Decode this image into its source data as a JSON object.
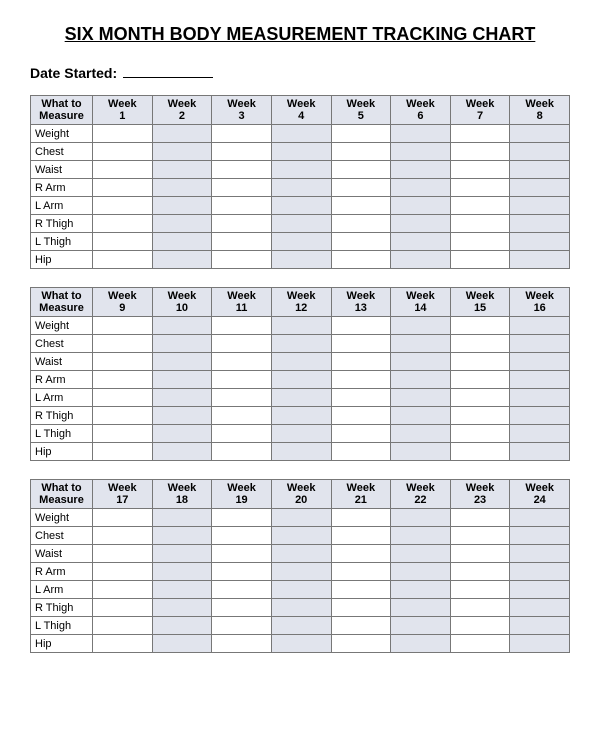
{
  "page": {
    "title": "SIX MONTH BODY MEASUREMENT TRACKING CHART",
    "date_started_label": "Date Started:",
    "title_fontsize": 18,
    "label_fontsize": 14,
    "body_fontsize": 11,
    "background_color": "#ffffff",
    "text_color": "#000000",
    "border_color": "#777777",
    "shaded_color": "#e1e4ed"
  },
  "blocks": [
    {
      "measure_header": "What to Measure",
      "week_headers": [
        "Week 1",
        "Week 2",
        "Week 3",
        "Week 4",
        "Week 5",
        "Week 6",
        "Week 7",
        "Week 8"
      ],
      "rows": [
        "Weight",
        "Chest",
        "Waist",
        "R Arm",
        "L  Arm",
        "R Thigh",
        "L Thigh",
        "Hip"
      ],
      "shaded_cols": [
        1,
        3,
        5,
        7
      ]
    },
    {
      "measure_header": "What to Measure",
      "week_headers": [
        "Week 9",
        "Week 10",
        "Week 11",
        "Week 12",
        "Week 13",
        "Week 14",
        "Week 15",
        "Week 16"
      ],
      "rows": [
        "Weight",
        "Chest",
        "Waist",
        "R Arm",
        "L  Arm",
        "R Thigh",
        "L Thigh",
        "Hip"
      ],
      "shaded_cols": [
        1,
        3,
        5,
        7
      ]
    },
    {
      "measure_header": "What to Measure",
      "week_headers": [
        "Week 17",
        "Week 18",
        "Week 19",
        "Week 20",
        "Week 21",
        "Week 22",
        "Week 23",
        "Week 24"
      ],
      "rows": [
        "Weight",
        "Chest",
        "Waist",
        "R Arm",
        "L  Arm",
        "R Thigh",
        "L Thigh",
        "Hip"
      ],
      "shaded_cols": [
        1,
        3,
        5,
        7
      ]
    }
  ]
}
